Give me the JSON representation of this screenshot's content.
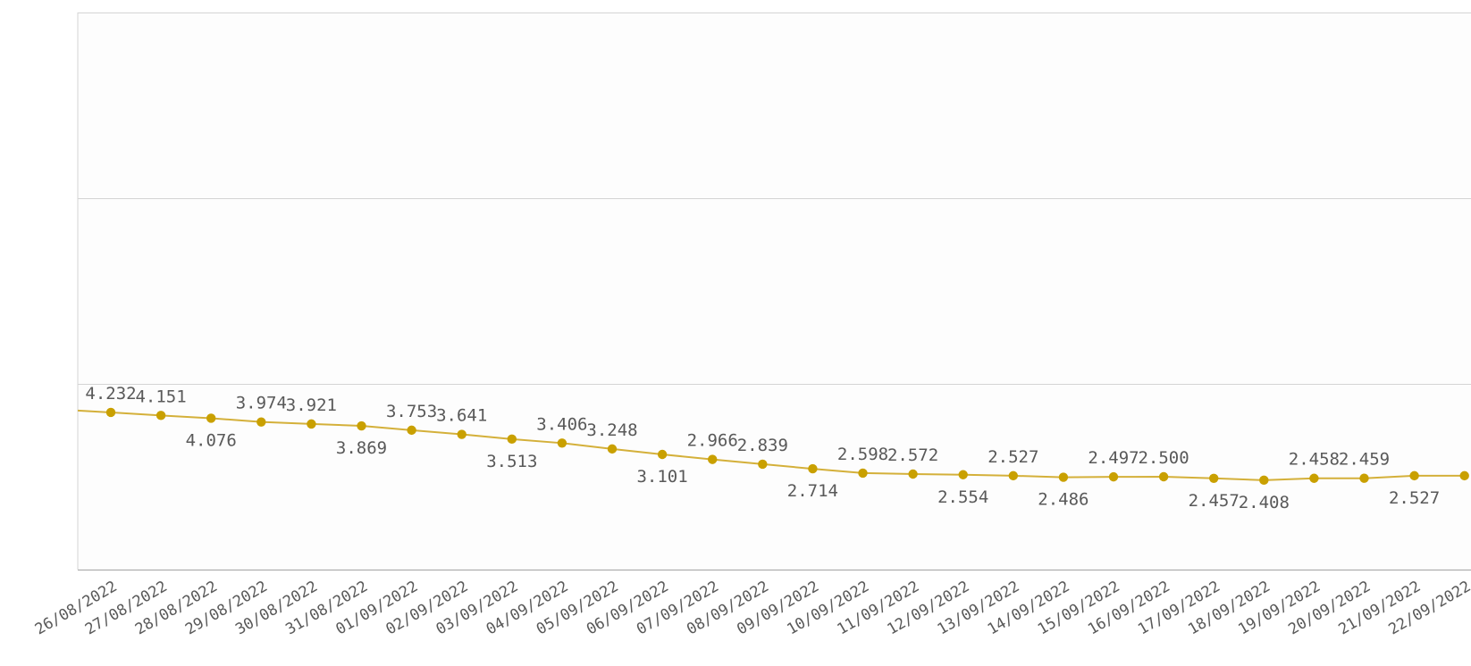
{
  "chart_data": {
    "type": "line",
    "title": "",
    "xlabel": "",
    "ylabel": "",
    "ylim": [
      0,
      15
    ],
    "grid": true,
    "legend": "none",
    "series_color": "#c9a000",
    "categories": [
      "26/08/2022",
      "27/08/2022",
      "28/08/2022",
      "29/08/2022",
      "30/08/2022",
      "31/08/2022",
      "01/09/2022",
      "02/09/2022",
      "03/09/2022",
      "04/09/2022",
      "05/09/2022",
      "06/09/2022",
      "07/09/2022",
      "08/09/2022",
      "09/09/2022",
      "10/09/2022",
      "11/09/2022",
      "12/09/2022",
      "13/09/2022",
      "14/09/2022",
      "15/09/2022",
      "16/09/2022",
      "17/09/2022",
      "18/09/2022",
      "19/09/2022",
      "20/09/2022",
      "21/09/2022",
      "22/09/2022"
    ],
    "series": [
      {
        "values": [
          4.232,
          4.151,
          4.076,
          3.974,
          3.921,
          3.869,
          3.753,
          3.641,
          3.513,
          3.406,
          3.248,
          3.101,
          2.966,
          2.839,
          2.714,
          2.598,
          2.572,
          2.554,
          2.527,
          2.486,
          2.497,
          2.5,
          2.457,
          2.408,
          2.458,
          2.459,
          2.527,
          2.527
        ],
        "labels": [
          "4.232",
          "4.151",
          "4.076",
          "3.974",
          "3.921",
          "3.869",
          "3.753",
          "3.641",
          "3.513",
          "3.406",
          "3.248",
          "3.101",
          "2.966",
          "2.839",
          "2.714",
          "2.598",
          "2.572",
          "2.554",
          "2.527",
          "2.486",
          "2.497",
          "2.500",
          "2.457",
          "2.408",
          "2.458",
          "2.459",
          "2.527",
          ""
        ]
      }
    ]
  }
}
